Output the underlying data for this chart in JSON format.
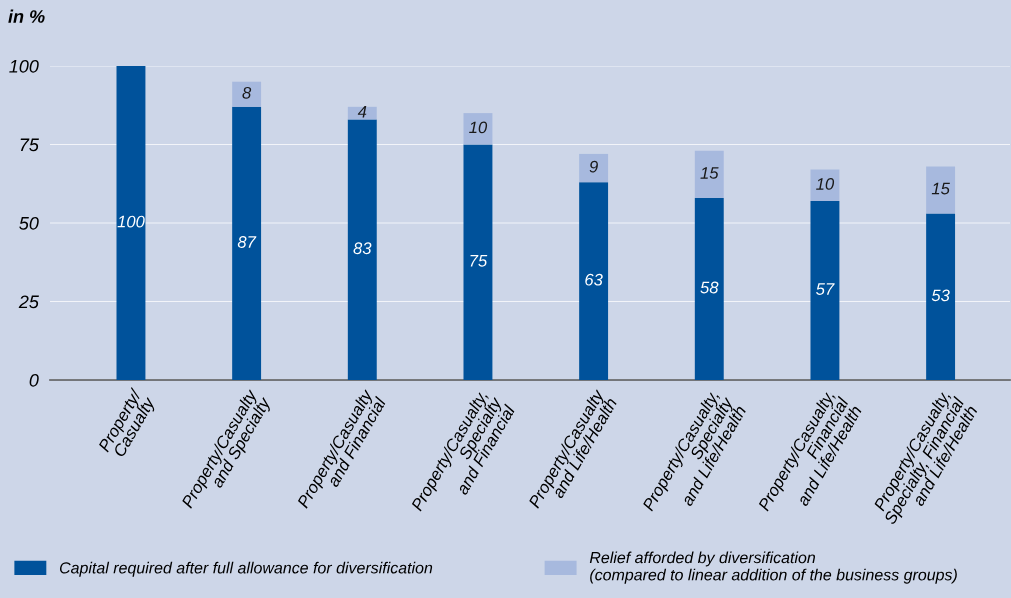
{
  "chart_data": {
    "type": "bar",
    "stacked": true,
    "ylabel": "in %",
    "categories": [
      "Property/\nCasualty",
      "Property/Casualty\nand Specialty",
      "Property/Casualty\nand Financial",
      "Property/Casualty,\nSpecialty\nand Financial",
      "Property/Casualty\nand Life/Health",
      "Property/Casualty,\nSpecialty\nand Life/Health",
      "Property/Casualty,\nFinancial\nand Life/Health",
      "Property/Casualty,\nSpecialty, Financial\nand Life/Health"
    ],
    "series": [
      {
        "name": "Capital required after full allowance for diversification",
        "color": "#00529b",
        "values": [
          100,
          87,
          83,
          75,
          63,
          58,
          57,
          53
        ]
      },
      {
        "name": "Relief afforded by diversification\n(compared to linear addition of the business groups)",
        "color": "#a7b9de",
        "values": [
          null,
          8,
          4,
          10,
          9,
          15,
          10,
          15
        ]
      }
    ],
    "ylim": [
      0,
      100
    ],
    "yticks": [
      0,
      25,
      50,
      75,
      100
    ],
    "grid": "y",
    "legend": "bottom",
    "data_labels": true
  }
}
